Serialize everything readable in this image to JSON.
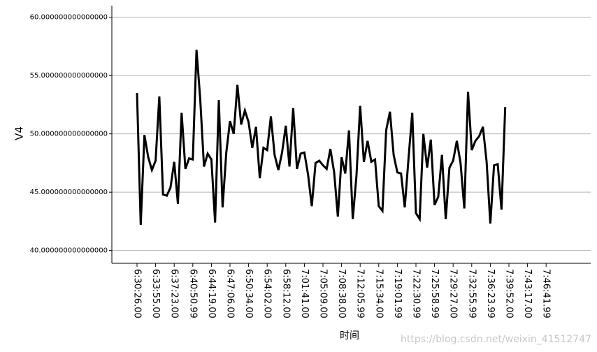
{
  "chart_data": {
    "type": "line",
    "x_label": "时间",
    "y_label": "V4",
    "watermark": "https://blog.csdn.net/weixin_41512747",
    "categories": [
      "6:30:26.00",
      null,
      null,
      null,
      null,
      "6:33:55.00",
      null,
      null,
      null,
      null,
      "6:37:23.00",
      null,
      null,
      null,
      null,
      "6:40:50.99",
      null,
      null,
      null,
      null,
      "6:44:19.00",
      null,
      null,
      null,
      null,
      "6:47:06.00",
      null,
      null,
      null,
      null,
      "6:50:34.00",
      null,
      null,
      null,
      null,
      "6:54:02.00",
      null,
      null,
      null,
      null,
      "6:58:12.00",
      null,
      null,
      null,
      null,
      "7:01:41.00",
      null,
      null,
      null,
      null,
      "7:05:09.00",
      null,
      null,
      null,
      null,
      "7:08:38.00",
      null,
      null,
      null,
      null,
      "7:12:05.99",
      null,
      null,
      null,
      null,
      "7:15:34.00",
      null,
      null,
      null,
      null,
      "7:19:01.99",
      null,
      null,
      null,
      null,
      "7:22:30.99",
      null,
      null,
      null,
      null,
      "7:25:58.99",
      null,
      null,
      null,
      null,
      "7:29:27.00",
      null,
      null,
      null,
      null,
      "7:32:55.99",
      null,
      null,
      null,
      null,
      "7:36:23.99",
      null,
      null,
      null,
      null,
      "7:39:52.00",
      null,
      null,
      null,
      null,
      "7:43:17.00",
      null,
      null,
      null,
      null,
      "7:46:41.99"
    ],
    "values": [
      53.5,
      42.2,
      49.9,
      48.0,
      46.9,
      47.7,
      53.2,
      44.8,
      44.7,
      45.4,
      47.6,
      44.0,
      51.8,
      47.0,
      47.9,
      47.8,
      57.2,
      53.0,
      47.2,
      48.3,
      47.8,
      42.4,
      52.9,
      43.7,
      48.4,
      51.1,
      50.0,
      54.2,
      50.8,
      52.0,
      51.0,
      48.8,
      50.6,
      46.2,
      48.8,
      48.6,
      51.5,
      48.2,
      46.9,
      48.4,
      50.7,
      47.2,
      52.2,
      47.0,
      48.3,
      48.4,
      46.5,
      43.8,
      47.5,
      47.7,
      47.3,
      47.0,
      48.7,
      46.7,
      42.9,
      48.0,
      46.6,
      50.3,
      42.7,
      46.4,
      52.4,
      47.6,
      49.4,
      47.6,
      47.8,
      43.8,
      43.4,
      50.3,
      51.9,
      48.2,
      46.7,
      46.6,
      43.7,
      47.9,
      51.8,
      43.2,
      42.7,
      50.0,
      47.1,
      49.5,
      43.9,
      44.6,
      48.2,
      42.7,
      47.1,
      47.7,
      49.4,
      47.5,
      43.6,
      53.6,
      48.6,
      49.4,
      49.8,
      50.6,
      47.6,
      42.3,
      47.3,
      47.4,
      43.5,
      52.3,
      null,
      null,
      null,
      null,
      null,
      null,
      null,
      null,
      null,
      null,
      null
    ],
    "color": "#000000",
    "ylim": [
      38.9,
      61
    ],
    "yticks": [
      {
        "value": 40,
        "label": "40.000000000000000"
      },
      {
        "value": 45,
        "label": "45.000000000000000"
      },
      {
        "value": 50,
        "label": "50.000000000000000"
      },
      {
        "value": 55,
        "label": "55.000000000000000"
      },
      {
        "value": 60,
        "label": "60.000000000000000"
      }
    ],
    "grid": true
  }
}
